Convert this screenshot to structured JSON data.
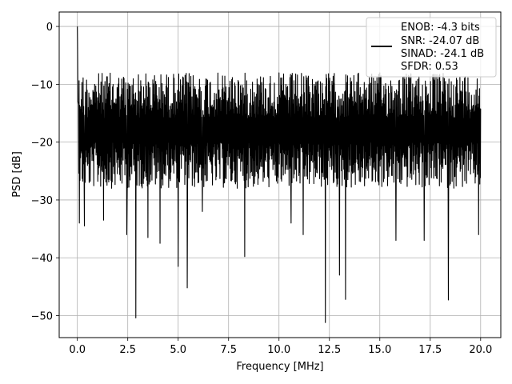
{
  "chart_data": {
    "type": "line",
    "title": "",
    "xlabel": "Frequency [MHz]",
    "ylabel": "PSD [dB]",
    "xlim": [
      -0.9,
      21.0
    ],
    "ylim": [
      -53.8,
      2.5
    ],
    "xticks": [
      0.0,
      2.5,
      5.0,
      7.5,
      10.0,
      12.5,
      15.0,
      17.5,
      20.0
    ],
    "xtick_labels": [
      "0.0",
      "2.5",
      "5.0",
      "7.5",
      "10.0",
      "12.5",
      "15.0",
      "17.5",
      "20.0"
    ],
    "yticks": [
      0,
      -10,
      -20,
      -30,
      -40,
      -50
    ],
    "ytick_labels": [
      "0",
      "−10",
      "−20",
      "−30",
      "−40",
      "−50"
    ],
    "grid": true,
    "legend_position": "top-right",
    "line_color": "#000000",
    "x_range": [
      0.0,
      20.0
    ],
    "typical_band_db": [
      -26,
      -9
    ],
    "notable_points": [
      {
        "x": 0.0,
        "y": 0.0
      },
      {
        "x": 0.1,
        "y": -34.0
      },
      {
        "x": 0.35,
        "y": -34.5
      },
      {
        "x": 1.3,
        "y": -33.5
      },
      {
        "x": 2.45,
        "y": -36.0
      },
      {
        "x": 2.9,
        "y": -50.4
      },
      {
        "x": 3.5,
        "y": -36.5
      },
      {
        "x": 4.1,
        "y": -37.5
      },
      {
        "x": 5.0,
        "y": -41.5
      },
      {
        "x": 5.45,
        "y": -45.2
      },
      {
        "x": 6.2,
        "y": -32.0
      },
      {
        "x": 8.3,
        "y": -39.8
      },
      {
        "x": 10.6,
        "y": -34.0
      },
      {
        "x": 11.2,
        "y": -36.0
      },
      {
        "x": 12.3,
        "y": -51.2
      },
      {
        "x": 13.0,
        "y": -43.0
      },
      {
        "x": 13.3,
        "y": -47.2
      },
      {
        "x": 15.8,
        "y": -37.0
      },
      {
        "x": 17.2,
        "y": -37.0
      },
      {
        "x": 18.4,
        "y": -47.3
      },
      {
        "x": 19.9,
        "y": -36.0
      }
    ],
    "legend": {
      "entries": [
        "ENOB: -4.3 bits",
        "SNR: -24.07 dB",
        "SINAD: -24.1 dB",
        "SFDR: 0.53"
      ]
    }
  }
}
